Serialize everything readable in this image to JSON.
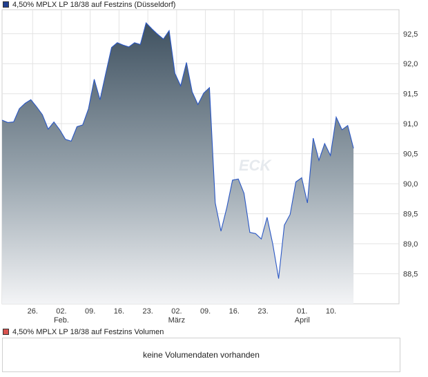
{
  "legend": {
    "price_label": "4,50% MPLX LP 18/38 auf Festzins (Düsseldorf)",
    "price_color": "#1f3e8f",
    "volume_label": "4,50% MPLX LP 18/38 auf Festzins Volumen",
    "volume_color": "#d9534f"
  },
  "volume_panel": {
    "message": "keine Volumendaten vorhanden"
  },
  "watermark": "ECK",
  "chart_data": {
    "type": "area",
    "title": "4,50% MPLX LP 18/38 auf Festzins (Düsseldorf)",
    "xlabel": "",
    "ylabel": "",
    "ylim": [
      88.0,
      92.9
    ],
    "yticks": [
      {
        "value": 88.5,
        "label": "88,5"
      },
      {
        "value": 89.0,
        "label": "89,0"
      },
      {
        "value": 89.5,
        "label": "89,5"
      },
      {
        "value": 90.0,
        "label": "90,0"
      },
      {
        "value": 90.5,
        "label": "90,5"
      },
      {
        "value": 91.0,
        "label": "91,0"
      },
      {
        "value": 91.5,
        "label": "91,5"
      },
      {
        "value": 92.0,
        "label": "92,0"
      },
      {
        "value": 92.5,
        "label": "92,5"
      }
    ],
    "x_domain": [
      0,
      68.9
    ],
    "xticks": [
      {
        "day": 5.3,
        "label": "26.",
        "sub": ""
      },
      {
        "day": 10.3,
        "label": "02.",
        "sub": "Feb."
      },
      {
        "day": 15.3,
        "label": "09.",
        "sub": ""
      },
      {
        "day": 20.3,
        "label": "16.",
        "sub": ""
      },
      {
        "day": 25.3,
        "label": "23.",
        "sub": ""
      },
      {
        "day": 30.3,
        "label": "02.",
        "sub": "März"
      },
      {
        "day": 35.3,
        "label": "09.",
        "sub": ""
      },
      {
        "day": 40.3,
        "label": "16.",
        "sub": ""
      },
      {
        "day": 45.3,
        "label": "23.",
        "sub": ""
      },
      {
        "day": 52.1,
        "label": "01.",
        "sub": "April"
      },
      {
        "day": 57.1,
        "label": "10.",
        "sub": ""
      }
    ],
    "series": [
      {
        "name": "4,50% MPLX LP 18/38 auf Festzins (Düsseldorf)",
        "points": [
          [
            0,
            91.06
          ],
          [
            1,
            91.02
          ],
          [
            2,
            91.03
          ],
          [
            3,
            91.25
          ],
          [
            4,
            91.34
          ],
          [
            5,
            91.4
          ],
          [
            6,
            91.28
          ],
          [
            7,
            91.15
          ],
          [
            8,
            90.91
          ],
          [
            9,
            91.03
          ],
          [
            10,
            90.9
          ],
          [
            11,
            90.74
          ],
          [
            12,
            90.71
          ],
          [
            13,
            90.95
          ],
          [
            14,
            90.98
          ],
          [
            15,
            91.25
          ],
          [
            16,
            91.74
          ],
          [
            17,
            91.4
          ],
          [
            18,
            91.84
          ],
          [
            19,
            92.27
          ],
          [
            20,
            92.35
          ],
          [
            21,
            92.31
          ],
          [
            22,
            92.28
          ],
          [
            23,
            92.35
          ],
          [
            24,
            92.32
          ],
          [
            25,
            92.68
          ],
          [
            26,
            92.58
          ],
          [
            27,
            92.49
          ],
          [
            28,
            92.41
          ],
          [
            29,
            92.55
          ],
          [
            30,
            91.84
          ],
          [
            31,
            91.63
          ],
          [
            32,
            92.02
          ],
          [
            33,
            91.53
          ],
          [
            34,
            91.32
          ],
          [
            35,
            91.51
          ],
          [
            36,
            91.6
          ],
          [
            37,
            89.68
          ],
          [
            38,
            89.21
          ],
          [
            39,
            89.6
          ],
          [
            40,
            90.06
          ],
          [
            41,
            90.08
          ],
          [
            42,
            89.84
          ],
          [
            43,
            89.19
          ],
          [
            44,
            89.17
          ],
          [
            45,
            89.08
          ],
          [
            46,
            89.44
          ],
          [
            47,
            88.99
          ],
          [
            48,
            88.42
          ],
          [
            49,
            89.31
          ],
          [
            50,
            89.49
          ],
          [
            51,
            90.03
          ],
          [
            52,
            90.1
          ],
          [
            53,
            89.68
          ],
          [
            54,
            90.76
          ],
          [
            55,
            90.39
          ],
          [
            56,
            90.67
          ],
          [
            57,
            90.47
          ],
          [
            58,
            91.11
          ],
          [
            59,
            90.9
          ],
          [
            60,
            90.97
          ],
          [
            61,
            90.59
          ]
        ]
      }
    ]
  }
}
